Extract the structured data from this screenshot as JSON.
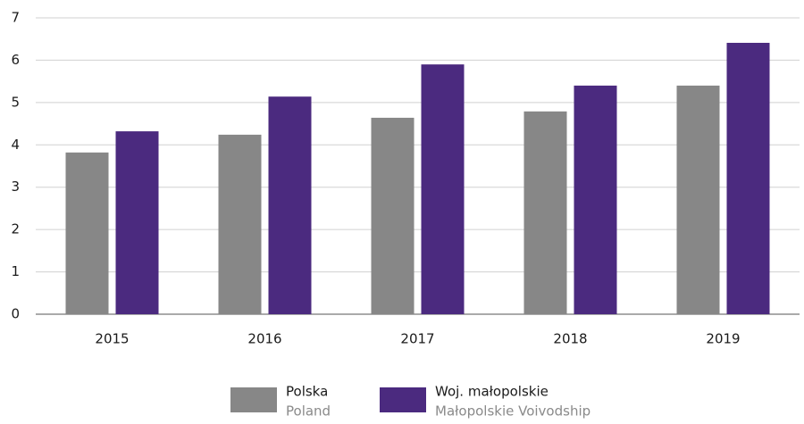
{
  "chart_data": {
    "type": "bar",
    "categories": [
      "2015",
      "2016",
      "2017",
      "2018",
      "2019"
    ],
    "series": [
      {
        "name": "Polska",
        "name_en": "Poland",
        "color": "#878787",
        "values": [
          3.82,
          4.24,
          4.64,
          4.79,
          5.4
        ]
      },
      {
        "name": "Woj. małopolskie",
        "name_en": "Małopolskie Voivodship",
        "color": "#4b2a7f",
        "values": [
          4.32,
          5.14,
          5.9,
          5.4,
          6.41
        ]
      }
    ],
    "ylim": [
      0,
      7
    ],
    "yticks": [
      0,
      1,
      2,
      3,
      4,
      5,
      6,
      7
    ],
    "grid": true,
    "legend": "bottom"
  }
}
